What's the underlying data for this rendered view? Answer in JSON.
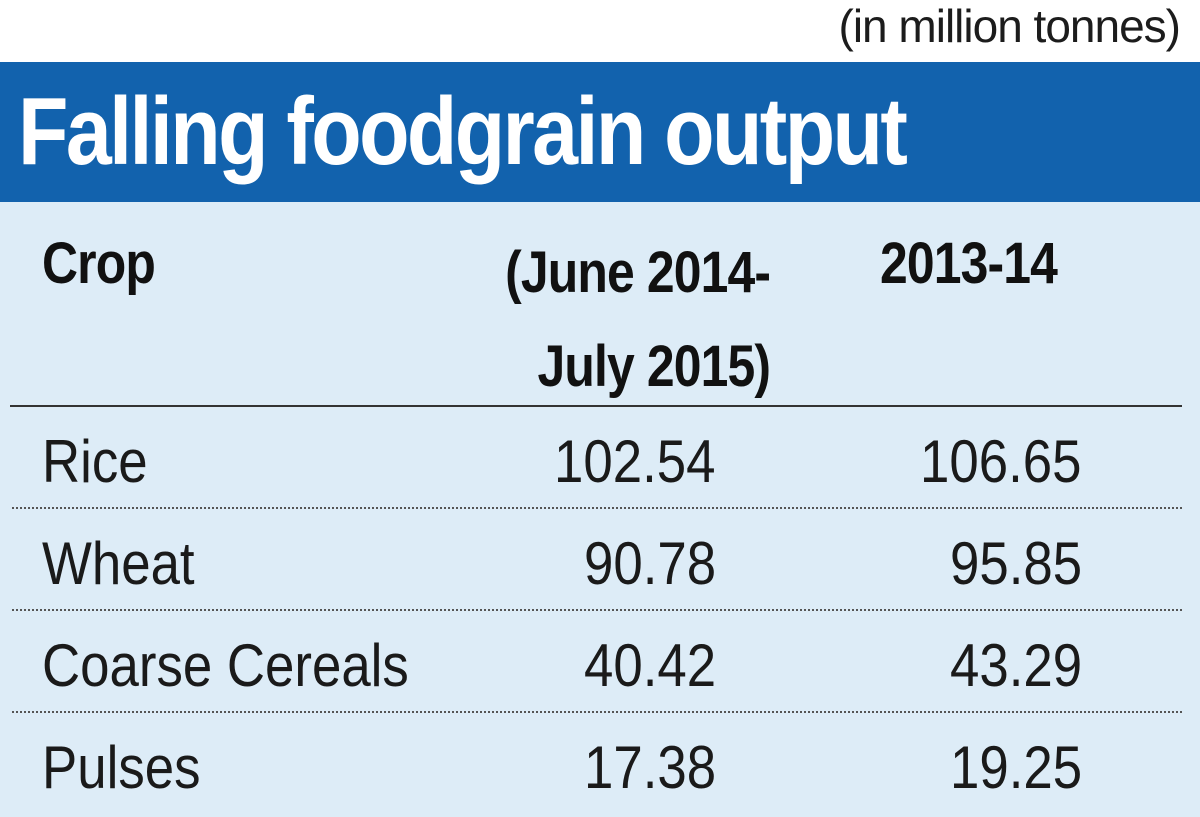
{
  "unit_note": "(in million tonnes)",
  "title": "Falling foodgrain output",
  "colors": {
    "title_bar": "#1262ad",
    "table_background": "#ddecf7",
    "title_text": "#ffffff"
  },
  "chart_data": {
    "type": "table",
    "title": "Falling foodgrain output",
    "unit": "(in million tonnes)",
    "columns": [
      "Crop",
      "(June 2014-\nJuly 2015)",
      "2013-14"
    ],
    "rows": [
      {
        "crop": "Rice",
        "v1": "102.54",
        "v2": "106.65"
      },
      {
        "crop": "Wheat",
        "v1": "90.78",
        "v2": "95.85"
      },
      {
        "crop": "Coarse Cereals",
        "v1": "40.42",
        "v2": "43.29"
      },
      {
        "crop": "Pulses",
        "v1": "17.38",
        "v2": "19.25"
      }
    ]
  }
}
